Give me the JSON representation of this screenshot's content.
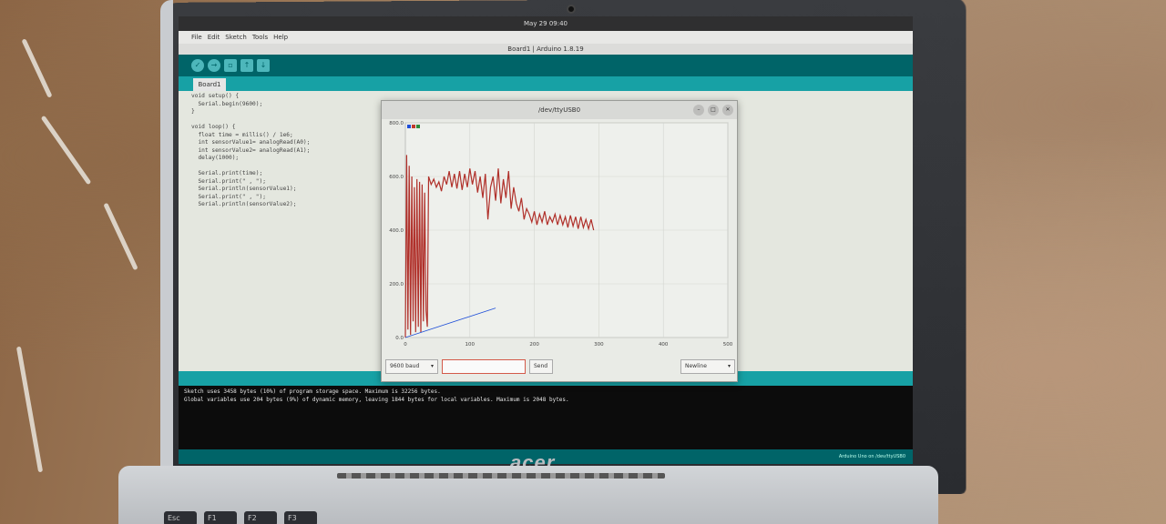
{
  "ide": {
    "system_clock": "May 29 09:40",
    "menu": [
      "File",
      "Edit",
      "Sketch",
      "Tools",
      "Help"
    ],
    "window_title": "Board1 | Arduino 1.8.19",
    "tab_label": "Board1",
    "code_lines": [
      "void setup() {",
      "  Serial.begin(9600);",
      "}",
      "",
      "void loop() {",
      "  float time = millis() / 1e6;",
      "  int sensorValue1= analogRead(A0);",
      "  int sensorValue2= analogRead(A1);",
      "  delay(1000);",
      "",
      "  Serial.print(time);",
      "  Serial.print(\" , \");",
      "  Serial.println(sensorValue1);",
      "  Serial.print(\" , \");",
      "  Serial.println(sensorValue2);"
    ],
    "console_lines": [
      "Sketch uses 3458 bytes (10%) of program storage space. Maximum is 32256 bytes.",
      "Global variables use 204 bytes (9%) of dynamic memory, leaving 1844 bytes for local variables. Maximum is 2048 bytes."
    ],
    "status_text": "Arduino Uno on /dev/ttyUSB0"
  },
  "plotter": {
    "title": "/dev/ttyUSB0",
    "baud": "9600 baud",
    "send_label": "Send",
    "send_input_value": "",
    "line_ending": "Newline",
    "legend_colors": [
      "#1f4fd8",
      "#c0392b",
      "#2e8b3a"
    ]
  },
  "chart_data": {
    "type": "line",
    "ylim": [
      0,
      800
    ],
    "xlim": [
      0,
      500
    ],
    "yticks": [
      "0.0",
      "200.0",
      "400.0",
      "600.0",
      "800.0"
    ],
    "xticks": [
      "100",
      "200",
      "300",
      "400",
      "500"
    ],
    "grid": true,
    "series": [
      {
        "color": "#b0302a",
        "x": [
          0,
          2,
          4,
          6,
          8,
          10,
          12,
          14,
          16,
          18,
          20,
          22,
          24,
          26,
          28,
          30,
          32,
          34,
          36,
          40,
          44,
          48,
          52,
          56,
          60,
          64,
          68,
          72,
          76,
          80,
          84,
          88,
          92,
          96,
          100,
          104,
          108,
          112,
          116,
          120,
          124,
          128,
          132,
          136,
          140,
          144,
          148,
          152,
          156,
          160,
          164,
          168,
          172,
          176,
          180,
          184,
          188,
          192,
          196,
          200,
          204,
          208,
          212,
          216,
          220,
          224,
          228,
          232,
          236,
          240,
          244,
          248,
          252,
          256,
          260,
          264,
          268,
          272,
          276,
          280,
          284,
          288,
          292
        ],
        "values": [
          0,
          680,
          30,
          640,
          10,
          600,
          60,
          560,
          20,
          590,
          40,
          580,
          20,
          570,
          60,
          540,
          100,
          40,
          600,
          570,
          590,
          560,
          580,
          545,
          600,
          570,
          620,
          560,
          610,
          555,
          620,
          550,
          610,
          560,
          630,
          570,
          620,
          540,
          600,
          520,
          610,
          440,
          560,
          600,
          510,
          630,
          500,
          590,
          520,
          620,
          480,
          560,
          500,
          470,
          520,
          440,
          480,
          460,
          430,
          470,
          420,
          460,
          430,
          470,
          420,
          450,
          430,
          460,
          420,
          455,
          420,
          450,
          410,
          455,
          415,
          450,
          405,
          450,
          410,
          440,
          405,
          440,
          400
        ]
      },
      {
        "color": "#1f4fd8",
        "x": [
          0,
          140
        ],
        "values": [
          0,
          110
        ]
      }
    ]
  }
}
